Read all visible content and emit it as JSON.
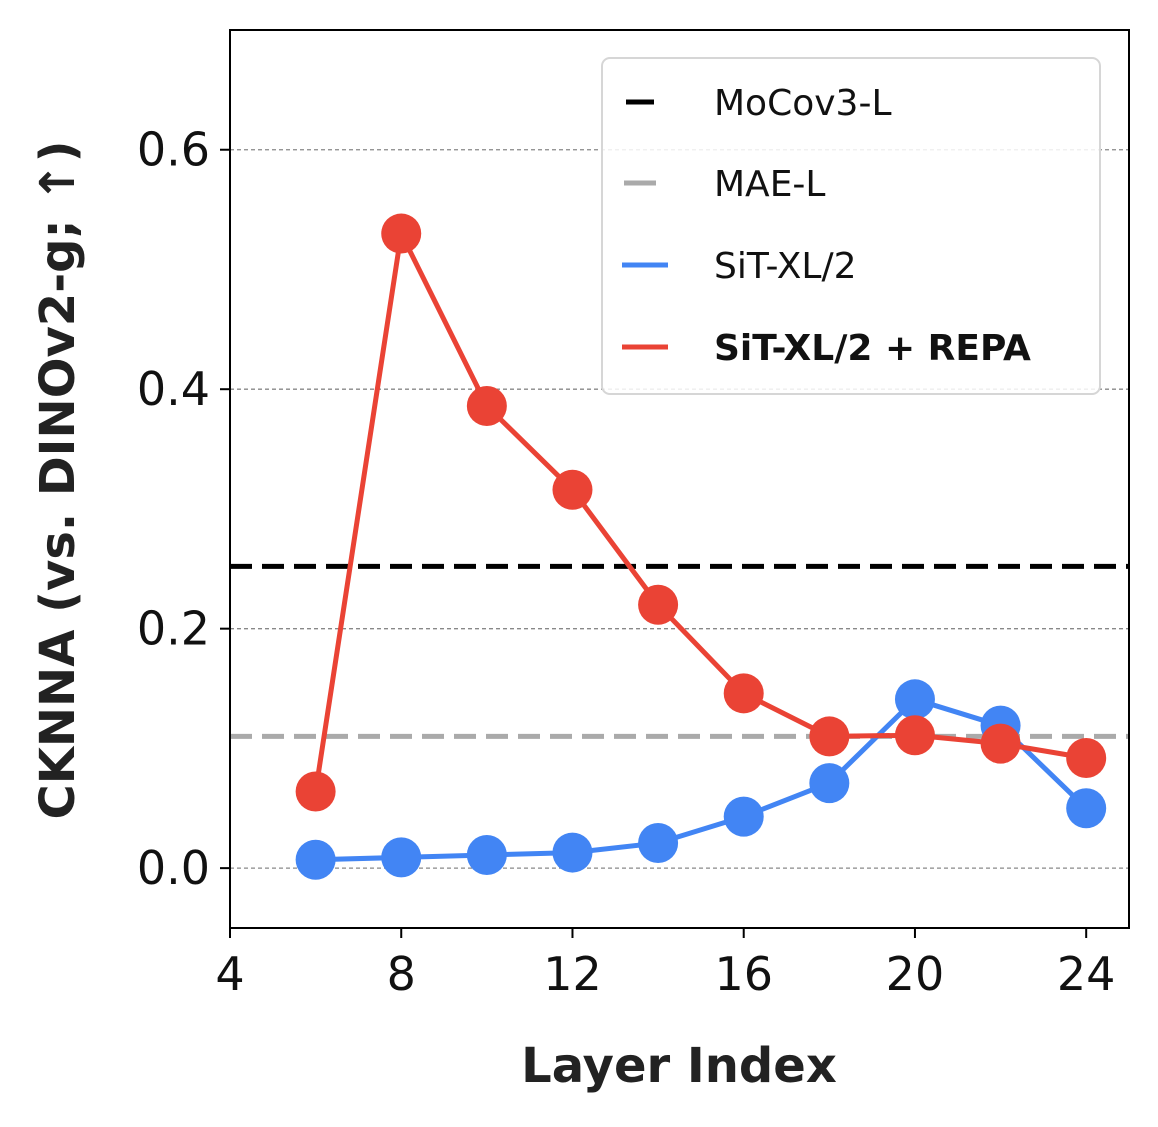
{
  "chart_data": {
    "type": "line",
    "xlabel": "Layer Index",
    "ylabel": "CKNNA (vs. DINOv2-g; ↑)",
    "xlim": [
      4,
      25
    ],
    "ylim": [
      -0.05,
      0.7
    ],
    "xticks": [
      4,
      8,
      12,
      16,
      20,
      24
    ],
    "yticks": [
      0.0,
      0.2,
      0.4,
      0.6
    ],
    "ytick_labels": [
      "0.0",
      "0.2",
      "0.4",
      "0.6"
    ],
    "xtick_labels": [
      "4",
      "8",
      "12",
      "16",
      "20",
      "24"
    ],
    "grid": "horizontal dashed",
    "legend_position": "top-right",
    "x": [
      6,
      8,
      10,
      12,
      14,
      16,
      18,
      20,
      22,
      24
    ],
    "series": [
      {
        "name": "SiT-XL/2",
        "color": "#4285F4",
        "values": [
          0.007,
          0.009,
          0.011,
          0.013,
          0.021,
          0.043,
          0.071,
          0.141,
          0.119,
          0.05
        ]
      },
      {
        "name": "SiT-XL/2 + REPA",
        "color": "#EA4335",
        "values": [
          0.064,
          0.53,
          0.386,
          0.316,
          0.22,
          0.146,
          0.11,
          0.111,
          0.104,
          0.092
        ]
      }
    ],
    "reference_lines": [
      {
        "name": "MoCov3-L",
        "value": 0.252,
        "color": "#000000"
      },
      {
        "name": "MAE-L",
        "value": 0.11,
        "color": "#AAAAAA"
      }
    ],
    "legend": [
      {
        "label": "MoCov3-L",
        "color": "#000000",
        "style": "short-dash",
        "bold": false
      },
      {
        "label": "MAE-L",
        "color": "#AAAAAA",
        "style": "dash",
        "bold": false
      },
      {
        "label": "SiT-XL/2",
        "color": "#4285F4",
        "style": "solid",
        "bold": false
      },
      {
        "label": "SiT-XL/2 + REPA",
        "color": "#EA4335",
        "style": "solid",
        "bold": true
      }
    ]
  }
}
